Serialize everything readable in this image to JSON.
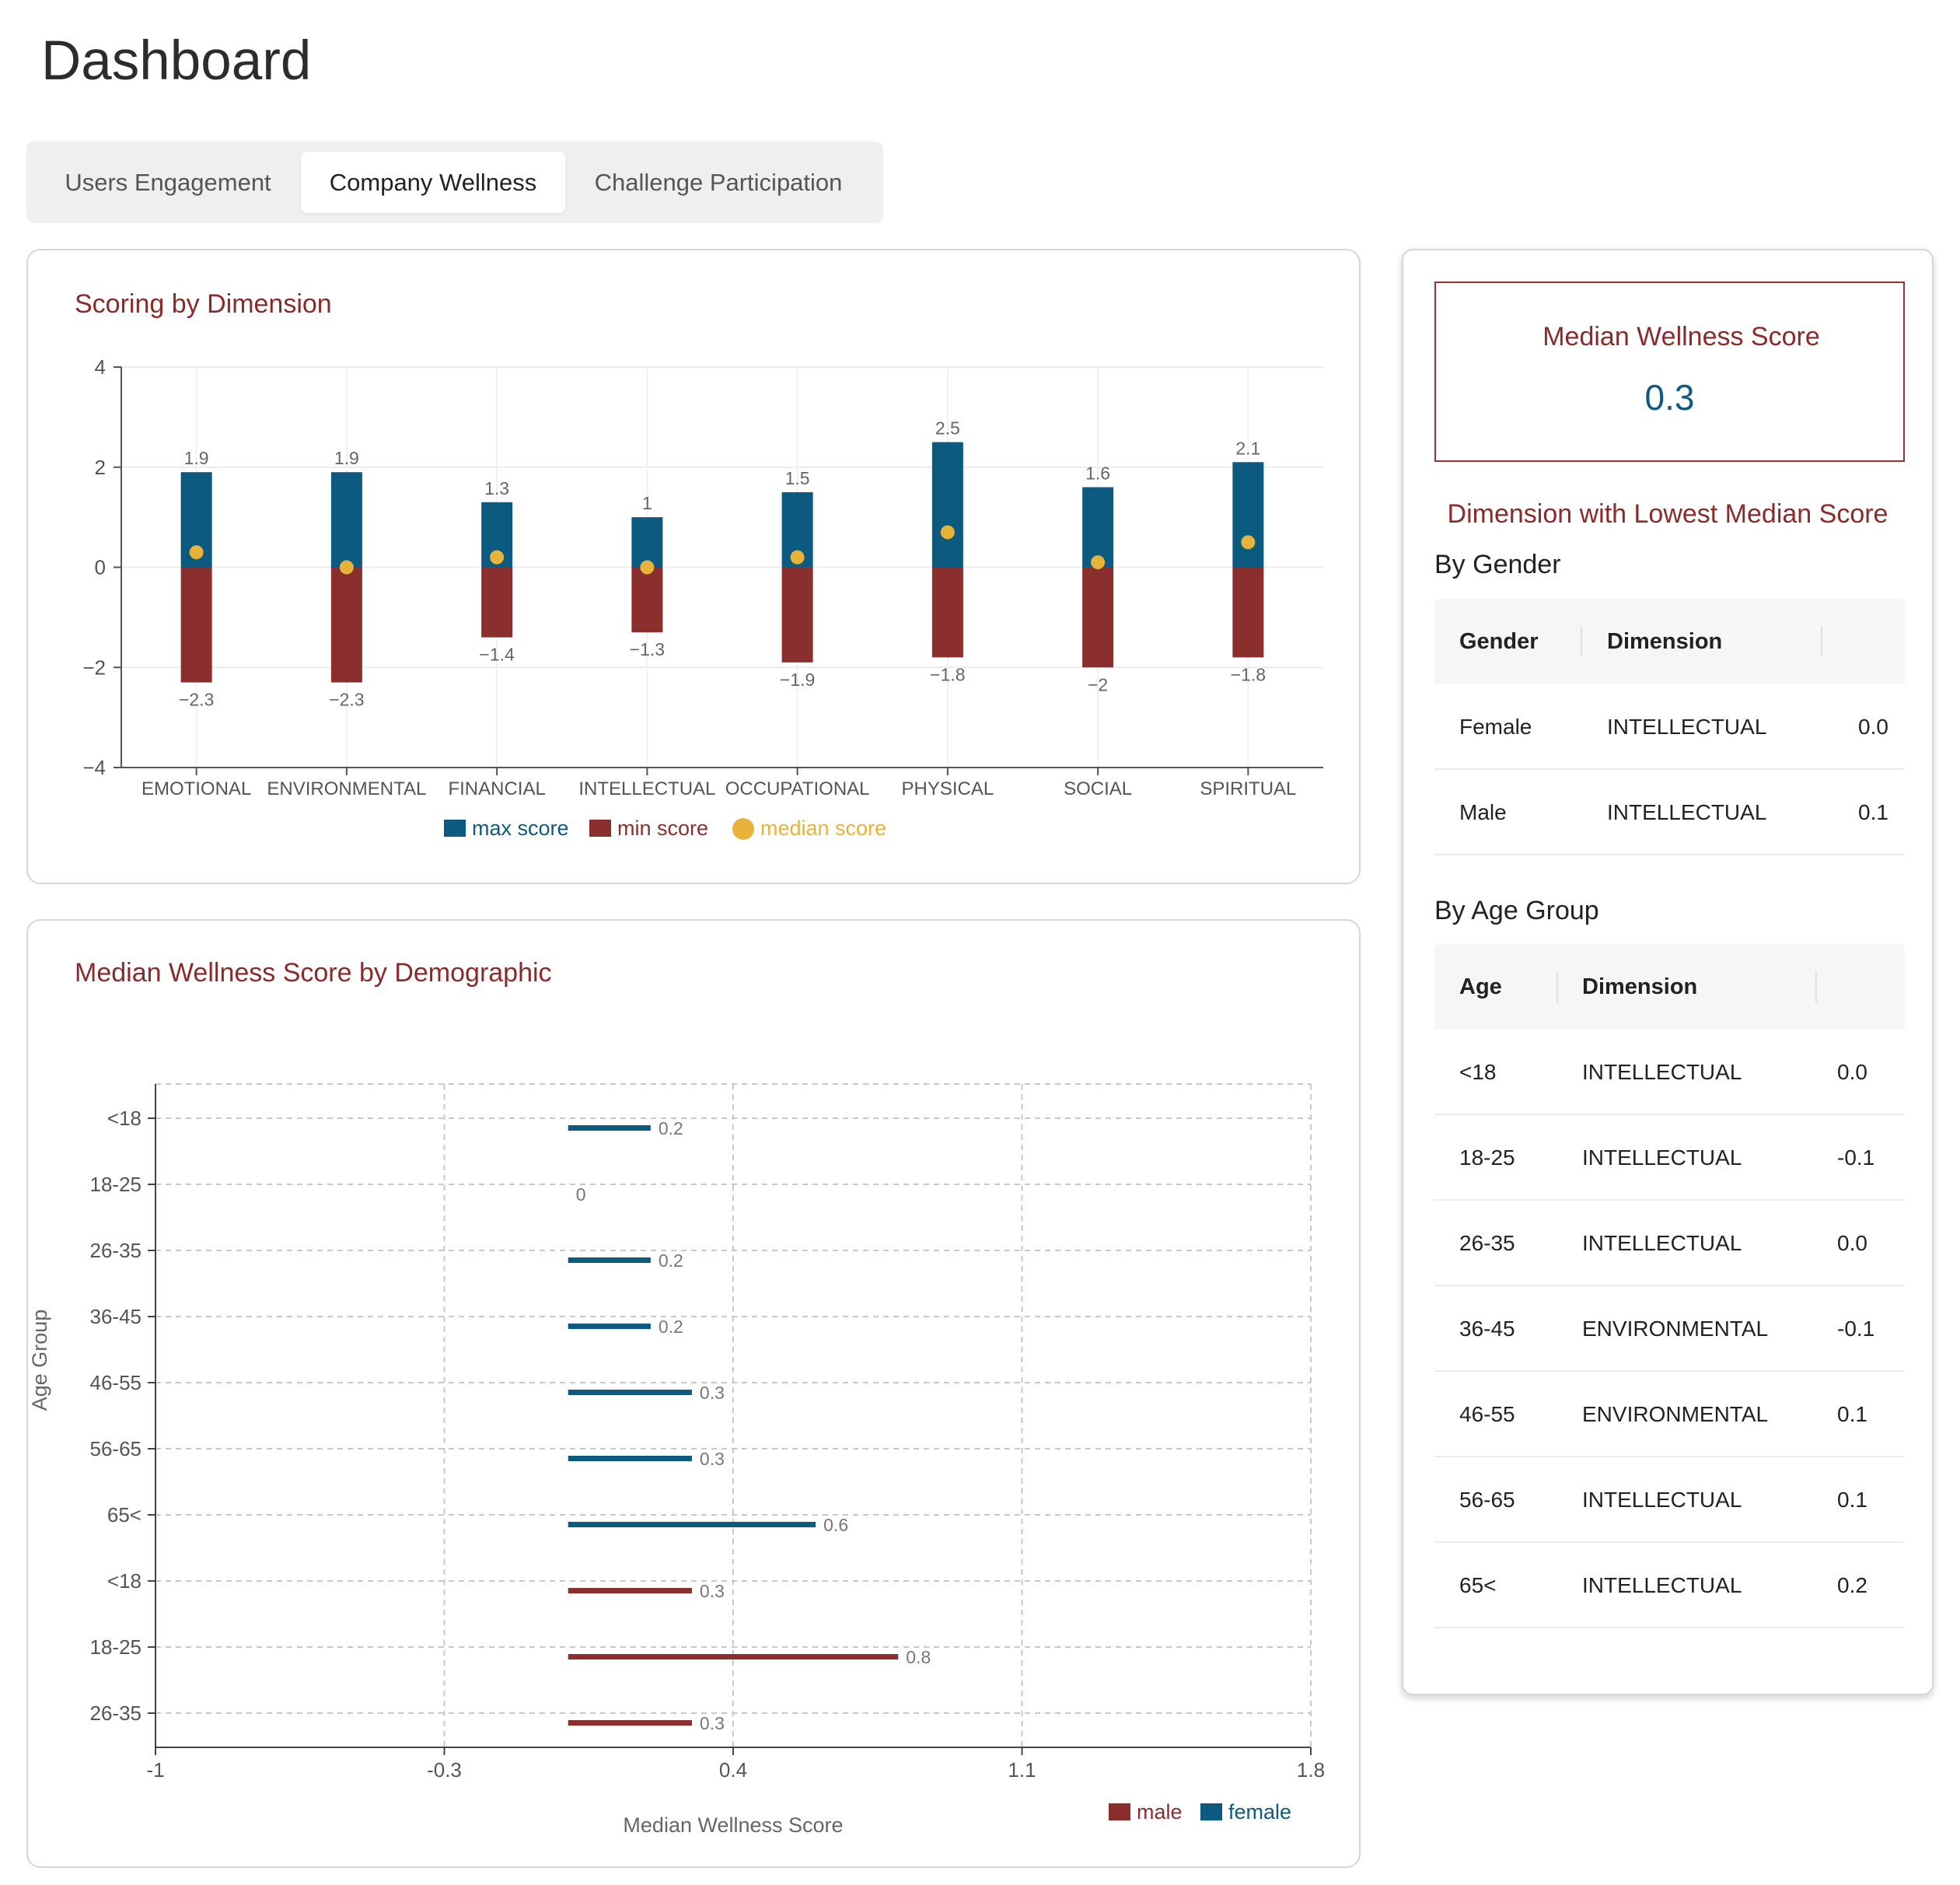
{
  "page": {
    "title": "Dashboard"
  },
  "tabs": [
    {
      "label": "Users Engagement",
      "active": false
    },
    {
      "label": "Company Wellness",
      "active": true
    },
    {
      "label": "Challenge Participation",
      "active": false
    }
  ],
  "colors": {
    "max": "#0d5a80",
    "min": "#8b2e2e",
    "median": "#e8b339",
    "title": "#8b2a2a"
  },
  "chart_data": [
    {
      "type": "bar",
      "title": "Scoring by Dimension",
      "categories": [
        "EMOTIONAL",
        "ENVIRONMENTAL",
        "FINANCIAL",
        "INTELLECTUAL",
        "OCCUPATIONAL",
        "PHYSICAL",
        "SOCIAL",
        "SPIRITUAL"
      ],
      "series": [
        {
          "name": "max score",
          "values": [
            1.9,
            1.9,
            1.3,
            1,
            1.5,
            2.5,
            1.6,
            2.1
          ]
        },
        {
          "name": "min score",
          "values": [
            -2.3,
            -2.3,
            -1.4,
            -1.3,
            -1.9,
            -1.8,
            -2,
            -1.8
          ]
        },
        {
          "name": "median score",
          "values": [
            0.3,
            0,
            0.2,
            0,
            0.2,
            0.7,
            0.1,
            0.5
          ]
        }
      ],
      "max_labels": [
        "1.9",
        "1.9",
        "1.3",
        "1",
        "1.5",
        "2.5",
        "1.6",
        "2.1"
      ],
      "min_labels": [
        "−2.3",
        "−2.3",
        "−1.4",
        "−1.3",
        "−1.9",
        "−1.8",
        "−2",
        "−1.8"
      ],
      "yticks": [
        4,
        2,
        0,
        -2,
        -4
      ],
      "ytick_labels": [
        "4",
        "2",
        "0",
        "−2",
        "−4"
      ],
      "ylim": [
        -4,
        4
      ],
      "legend": [
        "max score",
        "min score",
        "median score"
      ]
    },
    {
      "type": "bar",
      "orientation": "horizontal",
      "title": "Median Wellness Score by Demographic",
      "xlabel": "Median Wellness Score",
      "ylabel": "Age Group",
      "categories": [
        "<18",
        "18-25",
        "26-35",
        "36-45",
        "46-55",
        "56-65",
        "65<",
        "<18",
        "18-25",
        "26-35"
      ],
      "rows": [
        {
          "group": "<18",
          "gender": "female",
          "value": 0.2,
          "label": "0.2"
        },
        {
          "group": "18-25",
          "gender": "female",
          "value": 0,
          "label": "0"
        },
        {
          "group": "26-35",
          "gender": "female",
          "value": 0.2,
          "label": "0.2"
        },
        {
          "group": "36-45",
          "gender": "female",
          "value": 0.2,
          "label": "0.2"
        },
        {
          "group": "46-55",
          "gender": "female",
          "value": 0.3,
          "label": "0.3"
        },
        {
          "group": "56-65",
          "gender": "female",
          "value": 0.3,
          "label": "0.3"
        },
        {
          "group": "65<",
          "gender": "female",
          "value": 0.6,
          "label": "0.6"
        },
        {
          "group": "<18",
          "gender": "male",
          "value": 0.3,
          "label": "0.3"
        },
        {
          "group": "18-25",
          "gender": "male",
          "value": 0.8,
          "label": "0.8"
        },
        {
          "group": "26-35",
          "gender": "male",
          "value": 0.3,
          "label": "0.3"
        }
      ],
      "xticks": [
        -1,
        -0.3,
        0.4,
        1.1,
        1.8
      ],
      "xtick_labels": [
        "-1",
        "-0.3",
        "0.4",
        "1.1",
        "1.8"
      ],
      "xlim": [
        -1,
        1.8
      ],
      "legend": [
        "male",
        "female"
      ]
    }
  ],
  "summary": {
    "median_label": "Median Wellness Score",
    "median_value": "0.3",
    "lowest_title": "Dimension with Lowest Median Score"
  },
  "gender_table": {
    "heading": "By Gender",
    "headers": [
      "Gender",
      "Dimension"
    ],
    "rows": [
      {
        "key": "Female",
        "dimension": "INTELLECTUAL",
        "score": "0.0"
      },
      {
        "key": "Male",
        "dimension": "INTELLECTUAL",
        "score": "0.1"
      }
    ]
  },
  "age_table": {
    "heading": "By Age Group",
    "headers": [
      "Age",
      "Dimension"
    ],
    "rows": [
      {
        "key": "<18",
        "dimension": "INTELLECTUAL",
        "score": "0.0"
      },
      {
        "key": "18-25",
        "dimension": "INTELLECTUAL",
        "score": "-0.1"
      },
      {
        "key": "26-35",
        "dimension": "INTELLECTUAL",
        "score": "0.0"
      },
      {
        "key": "36-45",
        "dimension": "ENVIRONMENTAL",
        "score": "-0.1"
      },
      {
        "key": "46-55",
        "dimension": "ENVIRONMENTAL",
        "score": "0.1"
      },
      {
        "key": "56-65",
        "dimension": "INTELLECTUAL",
        "score": "0.1"
      },
      {
        "key": "65<",
        "dimension": "INTELLECTUAL",
        "score": "0.2"
      }
    ]
  }
}
